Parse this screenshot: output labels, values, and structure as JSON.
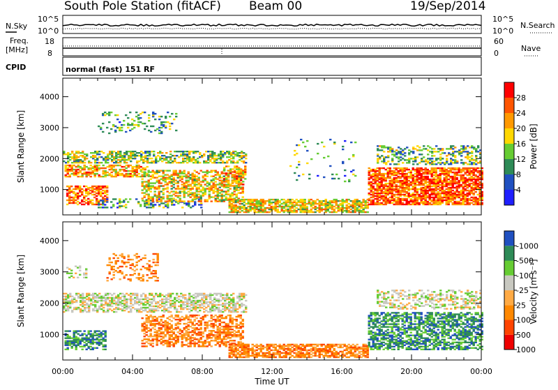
{
  "header": {
    "station": "South Pole Station (fitACF)",
    "beam": "Beam 00",
    "date": "19/Sep/2014"
  },
  "top_panels": {
    "nsky_label": "N.Sky",
    "nsky_ticks": [
      "10^5",
      "10^0"
    ],
    "nsearch_label": "N.Search",
    "nsearch_ticks": [
      "10^5",
      "10^0"
    ],
    "freq_label_line1": "Freq.",
    "freq_label_line2": "[MHz]",
    "freq_ticks": [
      "18",
      "8"
    ],
    "nave_label": "Nave",
    "nave_ticks": [
      "60",
      "0"
    ],
    "cpid_label": "CPID",
    "cpid_value": "normal (fast) 151 RF"
  },
  "colors": {
    "power": [
      "#1f1fff",
      "#2050c0",
      "#2e8b57",
      "#66cc33",
      "#ffd700",
      "#ff9900",
      "#ff5500",
      "#ff0000"
    ],
    "velocity": [
      "#ee0000",
      "#ff4400",
      "#ff8800",
      "#ffaa44",
      "#c8c8c0",
      "#66cc33",
      "#2e8b57",
      "#2050c0"
    ],
    "ground_scatter": "#c8c8c0"
  },
  "chart_data": [
    {
      "type": "heatmap",
      "quantity": "power",
      "ylabel": "Slant Range [km]",
      "xlim_hours": [
        0,
        24
      ],
      "ylim_km": [
        180,
        4600
      ],
      "y_ticks": [
        "1000",
        "2000",
        "3000",
        "4000"
      ],
      "colorbar": {
        "label": "Power [dB]",
        "range": [
          0,
          32
        ],
        "ticks": [
          "4",
          "8",
          "12",
          "16",
          "20",
          "24",
          "28"
        ]
      },
      "regions": [
        {
          "t": [
            0.0,
            10.5
          ],
          "r": [
            1850,
            2250
          ],
          "p": 0.45,
          "fill": 0.55
        },
        {
          "t": [
            0.1,
            4.8
          ],
          "r": [
            1400,
            1800
          ],
          "p": 0.7,
          "fill": 0.6
        },
        {
          "t": [
            0.2,
            2.5
          ],
          "r": [
            500,
            1100
          ],
          "p": 0.8,
          "fill": 0.6
        },
        {
          "t": [
            2.0,
            8.0
          ],
          "r": [
            400,
            700
          ],
          "p": 0.3,
          "fill": 0.3
        },
        {
          "t": [
            4.5,
            10.3
          ],
          "r": [
            600,
            1600
          ],
          "p": 0.6,
          "fill": 0.55
        },
        {
          "t": [
            9.5,
            17.5
          ],
          "r": [
            250,
            700
          ],
          "p": 0.6,
          "fill": 0.7
        },
        {
          "t": [
            9.2,
            10.4
          ],
          "r": [
            1100,
            1750
          ],
          "p": 0.7,
          "fill": 0.5
        },
        {
          "t": [
            17.5,
            24.0
          ],
          "r": [
            500,
            1700
          ],
          "p": 0.85,
          "fill": 0.75
        },
        {
          "t": [
            18.0,
            24.0
          ],
          "r": [
            1800,
            2400
          ],
          "p": 0.4,
          "fill": 0.4
        },
        {
          "t": [
            2.0,
            6.5
          ],
          "r": [
            2800,
            3500
          ],
          "p": 0.35,
          "fill": 0.18
        },
        {
          "t": [
            13.0,
            16.8
          ],
          "r": [
            1200,
            2600
          ],
          "p": 0.3,
          "fill": 0.05
        }
      ]
    },
    {
      "type": "heatmap",
      "quantity": "velocity",
      "xlabel": "Time UT",
      "ylabel": "Slant Range [km]",
      "xlim_hours": [
        0,
        24
      ],
      "ylim_km": [
        180,
        4600
      ],
      "x_ticks": [
        "00:00",
        "04:00",
        "08:00",
        "12:00",
        "16:00",
        "20:00",
        "00:00"
      ],
      "y_ticks": [
        "1000",
        "2000",
        "3000",
        "4000"
      ],
      "colorbar": {
        "label": "Velocity [m s⁻¹]",
        "ticks": [
          "1000",
          "500",
          "100",
          "25",
          "-25",
          "-100",
          "-500",
          "-1000"
        ]
      },
      "regions": [
        {
          "t": [
            0.0,
            10.5
          ],
          "r": [
            1700,
            2300
          ],
          "v": 4,
          "fill": 0.55
        },
        {
          "t": [
            0.1,
            2.5
          ],
          "r": [
            500,
            1100
          ],
          "v": 6,
          "fill": 0.6
        },
        {
          "t": [
            4.5,
            10.3
          ],
          "r": [
            600,
            1600
          ],
          "v": 2,
          "fill": 0.55
        },
        {
          "t": [
            9.5,
            17.5
          ],
          "r": [
            250,
            700
          ],
          "v": 2,
          "fill": 0.7
        },
        {
          "t": [
            17.5,
            24.0
          ],
          "r": [
            500,
            1700
          ],
          "v": 6,
          "fill": 0.6
        },
        {
          "t": [
            18.0,
            24.0
          ],
          "r": [
            1800,
            2400
          ],
          "v": 4,
          "fill": 0.4
        },
        {
          "t": [
            2.5,
            5.5
          ],
          "r": [
            2700,
            3600
          ],
          "v": 2,
          "fill": 0.25
        },
        {
          "t": [
            0.2,
            1.5
          ],
          "r": [
            2800,
            3200
          ],
          "v": 4,
          "fill": 0.3
        }
      ]
    }
  ]
}
